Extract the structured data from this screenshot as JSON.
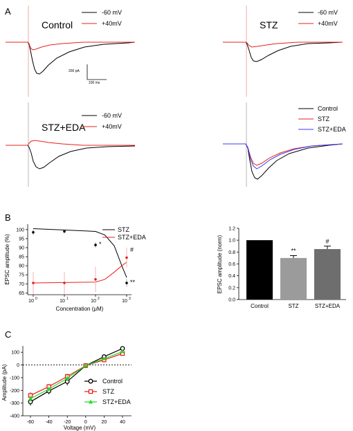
{
  "figure": {
    "panel_labels": {
      "a": "A",
      "b": "B",
      "c": "C"
    },
    "trace_panels": [
      {
        "title": "Control",
        "legend": [
          "-60 mV",
          "+40mV"
        ]
      },
      {
        "title": "STZ",
        "legend": [
          "-60 mV",
          "+40mV"
        ]
      },
      {
        "title": "STZ+EDA",
        "legend": [
          "-60 mV",
          "+40mV"
        ]
      },
      {
        "title": "",
        "legend": [
          "Control",
          "STZ",
          "STZ+EDA"
        ]
      }
    ],
    "scale_bar": {
      "amplitude_label": "200 pA",
      "time_label": "100 ms"
    },
    "colors": {
      "neg60": "#000000",
      "pos40": "#e8201c",
      "stz": "#e8201c",
      "eda": "#3a3aff",
      "eda_dot": "#9aa0e8",
      "stim": "#f2a8a8",
      "stim_gray": "#b8b8b8",
      "green": "#22dd22"
    }
  },
  "chart_data": [
    {
      "id": "dose-response",
      "type": "scatter",
      "xlabel": "Concentration (μM)",
      "ylabel": "EPSC amplitude (%)",
      "xscale": "log",
      "x_ticks": [
        "10",
        "10",
        "10",
        "10"
      ],
      "x_tick_exponents": [
        "0",
        "1",
        "2",
        "3"
      ],
      "x_tick_values": [
        1,
        10,
        100,
        1000
      ],
      "y_ticks": [
        "65",
        "70",
        "75",
        "80",
        "85",
        "90",
        "95",
        "100"
      ],
      "ylim": [
        64,
        103
      ],
      "legend_position": "top-right",
      "series": [
        {
          "name": "STZ",
          "color": "#000000",
          "points": [
            {
              "x": 1,
              "y": 98.5,
              "err": 1.5
            },
            {
              "x": 10,
              "y": 99.0,
              "err": 1.2
            },
            {
              "x": 100,
              "y": 91.5,
              "err": 1.5
            },
            {
              "x": 1000,
              "y": 70.5,
              "err": 2.0
            }
          ],
          "fit": [
            [
              1,
              100.5
            ],
            [
              100,
              99.0
            ],
            [
              200,
              97.0
            ],
            [
              400,
              91.0
            ],
            [
              700,
              80.0
            ],
            [
              1000,
              73.5
            ]
          ]
        },
        {
          "name": "STZ+EDA",
          "color": "#e8201c",
          "points": [
            {
              "x": 1,
              "y": 70.5,
              "err": 6.0
            },
            {
              "x": 10,
              "y": 70.5,
              "err": 6.0
            },
            {
              "x": 100,
              "y": 72.5,
              "err": 7.0
            },
            {
              "x": 1000,
              "y": 84.5,
              "err": 5.5
            }
          ],
          "fit": [
            [
              1,
              70.5
            ],
            [
              100,
              71.0
            ],
            [
              200,
              72.5
            ],
            [
              400,
              76.5
            ],
            [
              700,
              80.0
            ],
            [
              1000,
              82.0
            ]
          ]
        }
      ],
      "annotations": [
        {
          "text": "*",
          "x": 100,
          "y": 91.5
        },
        {
          "text": "#",
          "x": 1000,
          "y": 88.5
        },
        {
          "text": "**",
          "x": 1000,
          "y": 70.5
        }
      ]
    },
    {
      "id": "normalized-bar",
      "type": "bar",
      "ylabel": "EPSC amplitude (norm)",
      "categories": [
        "Control",
        "STZ",
        "STZ+EDA"
      ],
      "values": [
        1.0,
        0.7,
        0.85
      ],
      "errors": [
        0,
        0.04,
        0.05
      ],
      "colors": [
        "#000000",
        "#9b9b9b",
        "#6e6e6e"
      ],
      "significance": [
        "",
        "**",
        "#"
      ],
      "ylim": [
        0,
        1.2
      ],
      "y_ticks": [
        "0.0",
        "0.2",
        "0.4",
        "0.6",
        "0.8",
        "1.0",
        "1.2"
      ]
    },
    {
      "id": "iv-curve",
      "type": "line",
      "xlabel": "Voltage (mV)",
      "ylabel": "Amplitude (pA)",
      "x": [
        -60,
        -40,
        -20,
        0,
        20,
        40
      ],
      "x_ticks": [
        "-60",
        "-40",
        "-20",
        "0",
        "20",
        "40"
      ],
      "y_ticks": [
        "-400",
        "-300",
        "-200",
        "-100",
        "0",
        "100"
      ],
      "ylim": [
        -400,
        150
      ],
      "legend_position": "center-right",
      "series": [
        {
          "name": "Control",
          "color": "#000000",
          "marker": "circle",
          "values": [
            -290,
            -205,
            -130,
            -5,
            65,
            130
          ],
          "errors": [
            30,
            25,
            30,
            10,
            15,
            10
          ]
        },
        {
          "name": "STZ",
          "color": "#e8201c",
          "marker": "square",
          "values": [
            -240,
            -170,
            -90,
            -5,
            40,
            90
          ],
          "errors": [
            25,
            20,
            20,
            10,
            10,
            12
          ]
        },
        {
          "name": "STZ+EDA",
          "color": "#22dd22",
          "marker": "triangle",
          "values": [
            -265,
            -190,
            -105,
            -5,
            50,
            105
          ],
          "errors": [
            25,
            20,
            25,
            10,
            12,
            10
          ]
        }
      ]
    }
  ]
}
